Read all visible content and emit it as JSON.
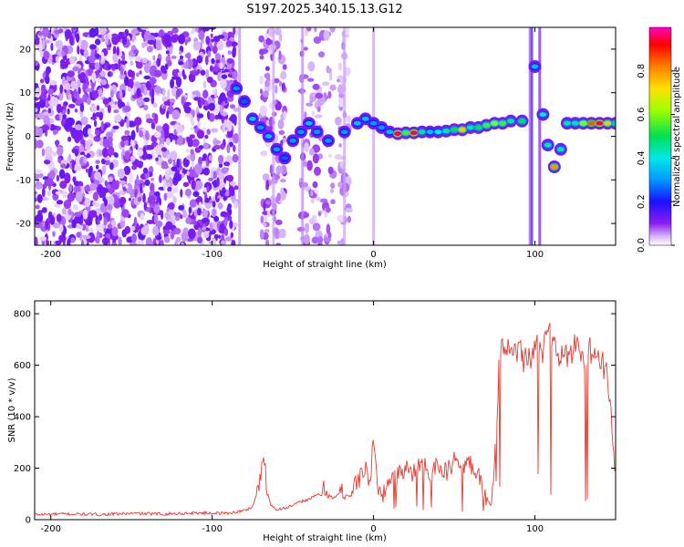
{
  "title": "S197.2025.340.15.13.G12",
  "chart_data": [
    {
      "type": "heatmap",
      "xlabel": "Height of straight line (km)",
      "ylabel": "Frequency (Hz)",
      "xlim": [
        -210,
        150
      ],
      "ylim": [
        -25,
        25
      ],
      "xticks": [
        -200,
        -100,
        0,
        100
      ],
      "yticks": [
        -20,
        -10,
        0,
        10,
        20
      ],
      "colorbar": {
        "label": "Normalized spectral amplitude",
        "range": [
          0,
          1
        ],
        "ticks": [
          "0.0",
          "0.2",
          "0.4",
          "0.6",
          "0.8"
        ]
      },
      "ridge": [
        {
          "x": -85,
          "y": 11,
          "a": 0.3
        },
        {
          "x": -80,
          "y": 8,
          "a": 0.25
        },
        {
          "x": -75,
          "y": 4,
          "a": 0.35
        },
        {
          "x": -70,
          "y": 2,
          "a": 0.3
        },
        {
          "x": -65,
          "y": 0,
          "a": 0.35
        },
        {
          "x": -60,
          "y": -3,
          "a": 0.3
        },
        {
          "x": -55,
          "y": -5,
          "a": 0.25
        },
        {
          "x": -50,
          "y": -1,
          "a": 0.3
        },
        {
          "x": -45,
          "y": 1,
          "a": 0.3
        },
        {
          "x": -40,
          "y": 3,
          "a": 0.35
        },
        {
          "x": -35,
          "y": 1,
          "a": 0.3
        },
        {
          "x": -28,
          "y": -1,
          "a": 0.3
        },
        {
          "x": -18,
          "y": 1,
          "a": 0.3
        },
        {
          "x": -10,
          "y": 3,
          "a": 0.35
        },
        {
          "x": -5,
          "y": 4,
          "a": 0.35
        },
        {
          "x": 0,
          "y": 3,
          "a": 0.3
        },
        {
          "x": 5,
          "y": 2,
          "a": 0.3
        },
        {
          "x": 10,
          "y": 1,
          "a": 0.35
        },
        {
          "x": 15,
          "y": 0.6,
          "a": 0.95
        },
        {
          "x": 20,
          "y": 0.8,
          "a": 0.55
        },
        {
          "x": 25,
          "y": 0.8,
          "a": 0.95
        },
        {
          "x": 30,
          "y": 1,
          "a": 0.45
        },
        {
          "x": 35,
          "y": 1,
          "a": 0.35
        },
        {
          "x": 40,
          "y": 1,
          "a": 0.4
        },
        {
          "x": 45,
          "y": 1.2,
          "a": 0.45
        },
        {
          "x": 50,
          "y": 1.5,
          "a": 0.5
        },
        {
          "x": 55,
          "y": 1.5,
          "a": 0.75
        },
        {
          "x": 60,
          "y": 2,
          "a": 0.45
        },
        {
          "x": 65,
          "y": 2,
          "a": 0.5
        },
        {
          "x": 70,
          "y": 2.5,
          "a": 0.55
        },
        {
          "x": 75,
          "y": 3,
          "a": 0.6
        },
        {
          "x": 80,
          "y": 3,
          "a": 0.55
        },
        {
          "x": 85,
          "y": 3.5,
          "a": 0.45
        },
        {
          "x": 92,
          "y": 3.5,
          "a": 0.5
        },
        {
          "x": 100,
          "y": 16,
          "a": 0.35
        },
        {
          "x": 105,
          "y": 5,
          "a": 0.4
        },
        {
          "x": 108,
          "y": -2,
          "a": 0.45
        },
        {
          "x": 112,
          "y": -7,
          "a": 0.8
        },
        {
          "x": 116,
          "y": -3,
          "a": 0.45
        },
        {
          "x": 120,
          "y": 3,
          "a": 0.45
        },
        {
          "x": 125,
          "y": 3,
          "a": 0.45
        },
        {
          "x": 130,
          "y": 3,
          "a": 0.6
        },
        {
          "x": 135,
          "y": 3,
          "a": 0.85
        },
        {
          "x": 140,
          "y": 3,
          "a": 0.95
        },
        {
          "x": 145,
          "y": 3,
          "a": 0.75
        },
        {
          "x": 150,
          "y": 3,
          "a": 0.5
        }
      ]
    },
    {
      "type": "line",
      "xlabel": "Height of straight line (km)",
      "ylabel": "SNR (10 * v/v)",
      "xlim": [
        -210,
        150
      ],
      "ylim": [
        0,
        850
      ],
      "xticks": [
        -200,
        -100,
        0,
        100
      ],
      "yticks": [
        0,
        200,
        400,
        600,
        800
      ],
      "color": "#e83a2e",
      "series": [
        {
          "x": [
            -210,
            -190,
            -170,
            -150,
            -130,
            -110,
            -90,
            -80,
            -75,
            -70,
            -68,
            -66,
            -64,
            -60,
            -55,
            -50,
            -45,
            -40,
            -35,
            -30,
            -25,
            -20,
            -15,
            -10,
            -5,
            -2,
            0,
            2,
            5,
            10,
            15,
            20,
            25,
            30,
            35,
            40,
            45,
            50,
            55,
            60,
            65,
            70,
            73,
            75,
            78,
            80,
            85,
            90,
            95,
            100,
            105,
            108,
            110,
            115,
            120,
            125,
            130,
            135,
            140,
            145,
            150
          ],
          "values": [
            20,
            22,
            20,
            24,
            22,
            26,
            25,
            35,
            50,
            150,
            270,
            120,
            60,
            40,
            45,
            55,
            70,
            80,
            95,
            120,
            80,
            110,
            90,
            150,
            200,
            140,
            320,
            160,
            90,
            150,
            170,
            200,
            180,
            230,
            190,
            210,
            180,
            230,
            200,
            220,
            180,
            90,
            50,
            200,
            620,
            650,
            640,
            660,
            610,
            670,
            640,
            760,
            700,
            650,
            620,
            680,
            640,
            660,
            620,
            580,
            160
          ]
        }
      ]
    }
  ]
}
